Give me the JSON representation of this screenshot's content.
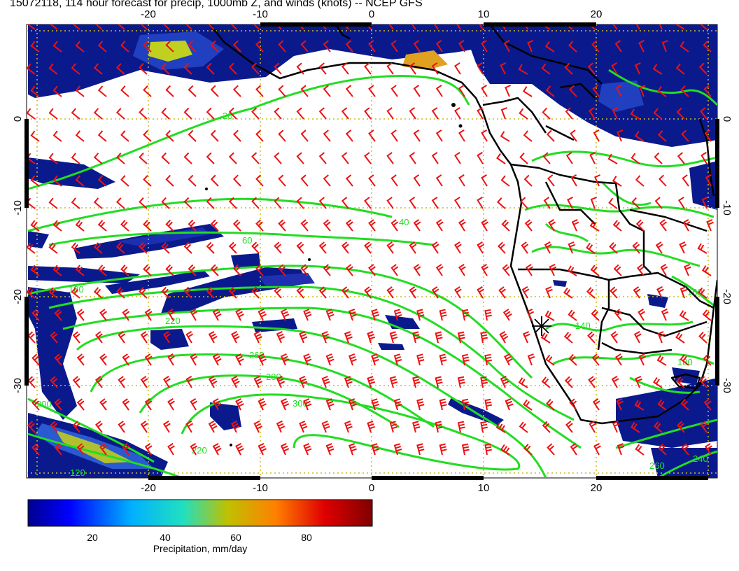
{
  "title": "15072118, 114 hour forecast for precip, 1000mb Z, and winds (knots) -- NCEP GFS",
  "map": {
    "lon_ticks": [
      "-20",
      "-10",
      "0",
      "10",
      "20"
    ],
    "lat_ticks": [
      "0",
      "-10",
      "-20",
      "-30"
    ],
    "contour_labels": [
      "20",
      "40",
      "60",
      "180",
      "220",
      "260",
      "280",
      "300",
      "140",
      "160",
      "180",
      "200",
      "240",
      "260",
      "220",
      "120"
    ],
    "colors": {
      "contours": "#22dd22",
      "wind_barbs": "#ee1111",
      "coastlines": "#000000",
      "grid": "#ccbb22",
      "precip_low": "#0a1a8c",
      "precip_high": "#e0e040"
    }
  },
  "colorbar": {
    "ticks": [
      "20",
      "40",
      "60",
      "80"
    ],
    "label": "Precipitation, mm/day",
    "colors": [
      "#00008f",
      "#0000ff",
      "#00b0ff",
      "#20e0c0",
      "#c0c000",
      "#ff8000",
      "#e00000",
      "#800000"
    ]
  }
}
